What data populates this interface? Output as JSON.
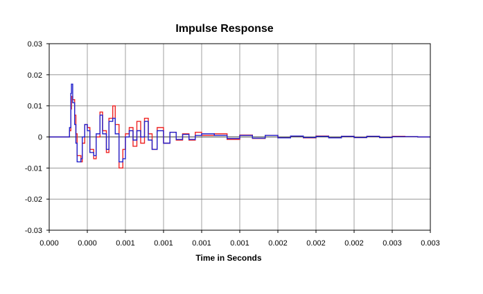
{
  "chart_data": {
    "type": "line",
    "title": "Impulse Response",
    "xlabel": "Time in Seconds",
    "ylabel": "",
    "x_tick_labels": [
      "0.000",
      "0.000",
      "0.001",
      "0.001",
      "0.001",
      "0.001",
      "0.002",
      "0.002",
      "0.002",
      "0.003",
      "0.003"
    ],
    "y_tick_labels": [
      "0.03",
      "0.02",
      "0.01",
      "0",
      "-0.01",
      "-0.02",
      "-0.03"
    ],
    "xlim": [
      0,
      0.003
    ],
    "ylim": [
      -0.03,
      0.03
    ],
    "y_ticks": [
      0.03,
      0.02,
      0.01,
      0,
      -0.01,
      -0.02,
      -0.03
    ],
    "grid": true,
    "legend": "none",
    "colors": {
      "series_red": "#ee2222",
      "series_blue": "#2222cc",
      "grid": "#888888",
      "axis": "#000000"
    },
    "series": [
      {
        "color": "#ee2222",
        "x": [
          0,
          0.00015,
          0.00016,
          0.00017,
          0.000175,
          0.000185,
          0.0002,
          0.00021,
          0.00022,
          0.00025,
          0.00026,
          0.00028,
          0.0003,
          0.00032,
          0.00035,
          0.00037,
          0.0004,
          0.00042,
          0.00045,
          0.00047,
          0.0005,
          0.00052,
          0.00055,
          0.00058,
          0.0006,
          0.00063,
          0.00066,
          0.00069,
          0.00072,
          0.00075,
          0.00078,
          0.00081,
          0.00085,
          0.0009,
          0.00095,
          0.001,
          0.00105,
          0.0011,
          0.00115,
          0.0012,
          0.0013,
          0.0014,
          0.0015,
          0.0016,
          0.0017,
          0.0018,
          0.0019,
          0.002,
          0.0021,
          0.0022,
          0.0023,
          0.0024,
          0.0025,
          0.0026,
          0.0027,
          0.0028,
          0.0029,
          0.003
        ],
        "y": [
          0,
          0,
          0.002,
          0.009,
          0.013,
          0.012,
          0.007,
          0.001,
          -0.006,
          -0.008,
          -0.002,
          0.004,
          0.003,
          -0.004,
          -0.007,
          0.0,
          0.008,
          0.002,
          -0.005,
          0.006,
          0.01,
          0.004,
          -0.01,
          -0.004,
          0.001,
          0.003,
          -0.003,
          0.005,
          -0.002,
          0.006,
          0.001,
          -0.004,
          0.003,
          -0.002,
          0.0015,
          -0.001,
          0.001,
          -0.001,
          0.0015,
          0.0005,
          0.001,
          -0.0008,
          0.0006,
          -0.0005,
          0.0005,
          -0.0003,
          0.0003,
          -0.0003,
          0.0003,
          -0.0003,
          0.0002,
          -0.0002,
          0.0002,
          -0.0002,
          0.0002,
          0.0001,
          0,
          0
        ]
      },
      {
        "color": "#2222cc",
        "x": [
          0,
          0.00015,
          0.00016,
          0.00017,
          0.000175,
          0.000185,
          0.0002,
          0.00021,
          0.00022,
          0.00025,
          0.00026,
          0.00028,
          0.0003,
          0.00032,
          0.00035,
          0.00037,
          0.0004,
          0.00042,
          0.00045,
          0.00047,
          0.0005,
          0.00052,
          0.00055,
          0.00058,
          0.0006,
          0.00063,
          0.00066,
          0.00069,
          0.00072,
          0.00075,
          0.00078,
          0.00081,
          0.00085,
          0.0009,
          0.00095,
          0.001,
          0.00105,
          0.0011,
          0.00115,
          0.0012,
          0.0013,
          0.0014,
          0.0015,
          0.0016,
          0.0017,
          0.0018,
          0.0019,
          0.002,
          0.0021,
          0.0022,
          0.0023,
          0.0024,
          0.0025,
          0.0026,
          0.0027,
          0.0028,
          0.0029,
          0.003
        ],
        "y": [
          0,
          0,
          0.003,
          0.014,
          0.017,
          0.011,
          0.004,
          -0.002,
          -0.008,
          -0.007,
          0.0,
          0.004,
          0.002,
          -0.005,
          -0.006,
          0.001,
          0.007,
          0.001,
          -0.004,
          0.005,
          0.006,
          0.001,
          -0.008,
          -0.007,
          0.0,
          0.002,
          -0.001,
          0.002,
          0.0,
          0.005,
          -0.001,
          -0.004,
          0.002,
          -0.002,
          0.0015,
          -0.0008,
          0.0008,
          -0.0008,
          0.0005,
          0.001,
          0.0005,
          -0.0005,
          0.0005,
          -0.0004,
          0.0005,
          -0.0003,
          0.0003,
          -0.0002,
          0.0002,
          -0.0003,
          0.0002,
          -0.0002,
          0.0002,
          -0.0002,
          0.0001,
          0.0001,
          0,
          0
        ]
      }
    ]
  }
}
